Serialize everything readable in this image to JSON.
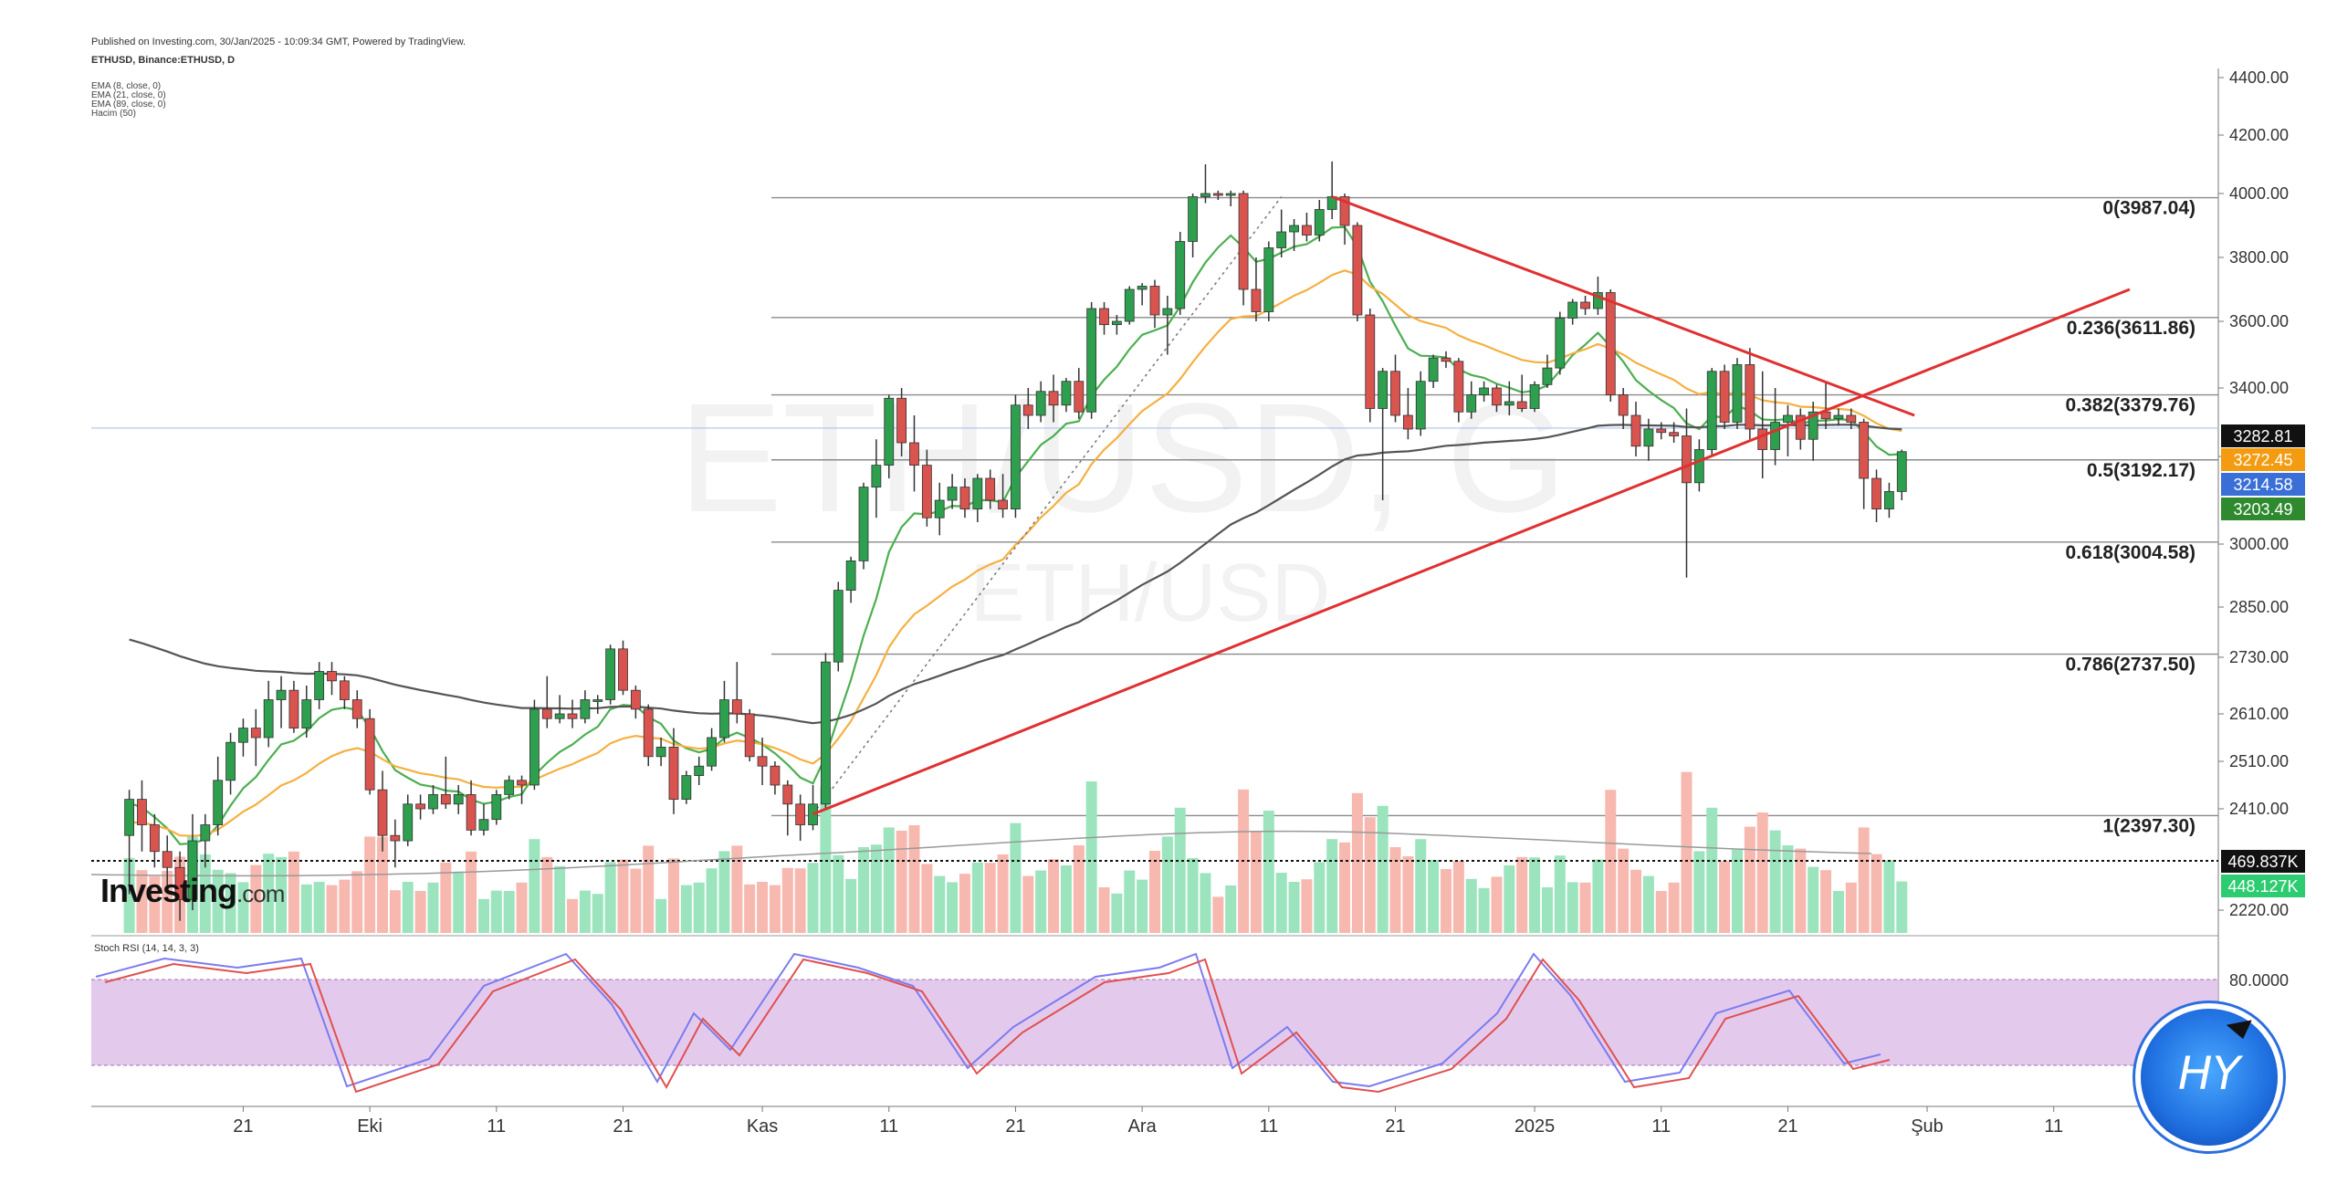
{
  "header": {
    "published": "Published on Investing.com, 30/Jan/2025 - 10:09:34 GMT, Powered by TradingView.",
    "symbol": "ETHUSD, Binance:ETHUSD, D",
    "indicators": [
      "EMA (8, close, 0)",
      "EMA (21, close, 0)",
      "EMA (89, close, 0)",
      "Hacim (50)"
    ]
  },
  "watermark": {
    "big": "ETH/USD, G",
    "small": "ETH/USD"
  },
  "brand": {
    "name": "Investing",
    "suffix": ".com"
  },
  "avatar": {
    "label": "HY"
  },
  "chart_data": {
    "type": "candlestick",
    "symbol": "ETHUSD",
    "timeframe": "D",
    "date_range": [
      "2024-09-12",
      "2025-01-30"
    ],
    "ylim": [
      2130,
      4430
    ],
    "y_ticks": [
      "4400.00",
      "4200.00",
      "4000.00",
      "3800.00",
      "3600.00",
      "3400.00",
      "3200.00",
      "3000.00",
      "2850.00",
      "2730.00",
      "2610.00",
      "2510.00",
      "2410.00",
      "2220.00"
    ],
    "x_ticks": [
      {
        "date": "2024-09-21",
        "label": "21"
      },
      {
        "date": "2024-10-01",
        "label": "Eki"
      },
      {
        "date": "2024-10-11",
        "label": "11"
      },
      {
        "date": "2024-10-21",
        "label": "21"
      },
      {
        "date": "2024-11-01",
        "label": "Kas"
      },
      {
        "date": "2024-11-11",
        "label": "11"
      },
      {
        "date": "2024-11-21",
        "label": "21"
      },
      {
        "date": "2024-12-01",
        "label": "Ara"
      },
      {
        "date": "2024-12-11",
        "label": "11"
      },
      {
        "date": "2024-12-21",
        "label": "21"
      },
      {
        "date": "2025-01-01",
        "label": "2025"
      },
      {
        "date": "2025-01-11",
        "label": "11"
      },
      {
        "date": "2025-01-21",
        "label": "21"
      },
      {
        "date": "2025-02-01",
        "label": "Şub"
      },
      {
        "date": "2025-02-11",
        "label": "11"
      }
    ],
    "fib_levels": [
      {
        "label": "0(3987.04)",
        "value": 3987.04
      },
      {
        "label": "0.236(3611.86)",
        "value": 3611.86
      },
      {
        "label": "0.382(3379.76)",
        "value": 3379.76
      },
      {
        "label": "0.5(3192.17)",
        "value": 3192.17
      },
      {
        "label": "0.618(3004.58)",
        "value": 3004.58
      },
      {
        "label": "0.786(2737.50)",
        "value": 2737.5
      },
      {
        "label": "1(2397.30)",
        "value": 2397.3
      }
    ],
    "price_tags": [
      {
        "label": "3282.81",
        "value": 3282.81,
        "color": "#111111"
      },
      {
        "label": "3272.45",
        "value": 3272.45,
        "color": "#f39c12"
      },
      {
        "label": "3214.58",
        "value": 3214.58,
        "color": "#3b6fd8"
      },
      {
        "label": "3203.49",
        "value": 3203.49,
        "color": "#2f8a2f"
      }
    ],
    "volume_tags": [
      {
        "label": "469.837K",
        "color": "#111111"
      },
      {
        "label": "448.127K",
        "color": "#2ecc71"
      }
    ],
    "rsi_ticks": [
      "80.0000"
    ],
    "rsi_title": "Stoch RSI (14, 14, 3, 3)",
    "series": [
      {
        "name": "EMA (8, close, 0)",
        "color": "#4caf50"
      },
      {
        "name": "EMA (21, close, 0)",
        "color": "#f5b041"
      },
      {
        "name": "EMA (89, close, 0)",
        "color": "#555555"
      }
    ],
    "trendlines": [
      {
        "from": [
          "2024-12-16",
          3990
        ],
        "to": [
          "2025-01-31",
          3320
        ],
        "color": "#e03030"
      },
      {
        "from": [
          "2024-11-05",
          2400
        ],
        "to": [
          "2025-02-17",
          3700
        ],
        "color": "#e03030"
      }
    ],
    "candles": [
      [
        "2024-09-12",
        2360,
        2450,
        2250,
        2430
      ],
      [
        "2024-09-13",
        2430,
        2470,
        2330,
        2380
      ],
      [
        "2024-09-14",
        2380,
        2400,
        2300,
        2330
      ],
      [
        "2024-09-15",
        2330,
        2360,
        2260,
        2300
      ],
      [
        "2024-09-16",
        2300,
        2330,
        2200,
        2240
      ],
      [
        "2024-09-17",
        2240,
        2400,
        2220,
        2350
      ],
      [
        "2024-09-18",
        2350,
        2400,
        2300,
        2380
      ],
      [
        "2024-09-19",
        2380,
        2520,
        2360,
        2470
      ],
      [
        "2024-09-20",
        2470,
        2570,
        2440,
        2550
      ],
      [
        "2024-09-21",
        2550,
        2600,
        2520,
        2580
      ],
      [
        "2024-09-22",
        2580,
        2620,
        2500,
        2560
      ],
      [
        "2024-09-23",
        2560,
        2680,
        2540,
        2640
      ],
      [
        "2024-09-24",
        2640,
        2690,
        2580,
        2660
      ],
      [
        "2024-09-25",
        2660,
        2680,
        2570,
        2580
      ],
      [
        "2024-09-26",
        2580,
        2670,
        2560,
        2640
      ],
      [
        "2024-09-27",
        2640,
        2720,
        2620,
        2700
      ],
      [
        "2024-09-28",
        2700,
        2720,
        2650,
        2680
      ],
      [
        "2024-09-29",
        2680,
        2690,
        2620,
        2640
      ],
      [
        "2024-09-30",
        2640,
        2660,
        2580,
        2600
      ],
      [
        "2024-10-01",
        2600,
        2620,
        2440,
        2450
      ],
      [
        "2024-10-02",
        2450,
        2490,
        2330,
        2360
      ],
      [
        "2024-10-03",
        2360,
        2390,
        2300,
        2350
      ],
      [
        "2024-10-04",
        2350,
        2440,
        2340,
        2420
      ],
      [
        "2024-10-05",
        2420,
        2440,
        2390,
        2410
      ],
      [
        "2024-10-06",
        2410,
        2460,
        2400,
        2440
      ],
      [
        "2024-10-07",
        2440,
        2520,
        2410,
        2420
      ],
      [
        "2024-10-08",
        2420,
        2460,
        2400,
        2440
      ],
      [
        "2024-10-09",
        2440,
        2470,
        2360,
        2370
      ],
      [
        "2024-10-10",
        2370,
        2420,
        2360,
        2390
      ],
      [
        "2024-10-11",
        2390,
        2450,
        2380,
        2440
      ],
      [
        "2024-10-12",
        2440,
        2480,
        2430,
        2470
      ],
      [
        "2024-10-13",
        2470,
        2480,
        2420,
        2460
      ],
      [
        "2024-10-14",
        2460,
        2640,
        2450,
        2620
      ],
      [
        "2024-10-15",
        2620,
        2690,
        2580,
        2600
      ],
      [
        "2024-10-16",
        2600,
        2650,
        2590,
        2610
      ],
      [
        "2024-10-17",
        2610,
        2640,
        2580,
        2600
      ],
      [
        "2024-10-18",
        2600,
        2660,
        2590,
        2640
      ],
      [
        "2024-10-19",
        2640,
        2650,
        2610,
        2640
      ],
      [
        "2024-10-20",
        2640,
        2760,
        2630,
        2750
      ],
      [
        "2024-10-21",
        2750,
        2770,
        2650,
        2660
      ],
      [
        "2024-10-22",
        2660,
        2670,
        2600,
        2620
      ],
      [
        "2024-10-23",
        2620,
        2630,
        2500,
        2520
      ],
      [
        "2024-10-24",
        2520,
        2560,
        2500,
        2540
      ],
      [
        "2024-10-25",
        2540,
        2580,
        2400,
        2430
      ],
      [
        "2024-10-26",
        2430,
        2490,
        2420,
        2480
      ],
      [
        "2024-10-27",
        2480,
        2520,
        2460,
        2500
      ],
      [
        "2024-10-28",
        2500,
        2580,
        2490,
        2560
      ],
      [
        "2024-10-29",
        2560,
        2680,
        2550,
        2640
      ],
      [
        "2024-10-30",
        2640,
        2720,
        2590,
        2610
      ],
      [
        "2024-10-31",
        2610,
        2620,
        2510,
        2520
      ],
      [
        "2024-11-01",
        2520,
        2560,
        2460,
        2500
      ],
      [
        "2024-11-02",
        2500,
        2510,
        2440,
        2460
      ],
      [
        "2024-11-03",
        2460,
        2470,
        2360,
        2420
      ],
      [
        "2024-11-04",
        2420,
        2440,
        2350,
        2380
      ],
      [
        "2024-11-05",
        2380,
        2460,
        2370,
        2420
      ],
      [
        "2024-11-06",
        2420,
        2740,
        2410,
        2720
      ],
      [
        "2024-11-07",
        2720,
        2910,
        2700,
        2890
      ],
      [
        "2024-11-08",
        2890,
        2970,
        2860,
        2960
      ],
      [
        "2024-11-09",
        2960,
        3140,
        2940,
        3130
      ],
      [
        "2024-11-10",
        3130,
        3250,
        3060,
        3180
      ],
      [
        "2024-11-11",
        3180,
        3380,
        3150,
        3370
      ],
      [
        "2024-11-12",
        3370,
        3400,
        3200,
        3240
      ],
      [
        "2024-11-13",
        3240,
        3320,
        3120,
        3180
      ],
      [
        "2024-11-14",
        3180,
        3220,
        3040,
        3060
      ],
      [
        "2024-11-15",
        3060,
        3140,
        3020,
        3100
      ],
      [
        "2024-11-16",
        3100,
        3160,
        3080,
        3130
      ],
      [
        "2024-11-17",
        3130,
        3150,
        3060,
        3080
      ],
      [
        "2024-11-18",
        3080,
        3160,
        3050,
        3150
      ],
      [
        "2024-11-19",
        3150,
        3170,
        3080,
        3100
      ],
      [
        "2024-11-20",
        3100,
        3160,
        3060,
        3080
      ],
      [
        "2024-11-21",
        3080,
        3380,
        3060,
        3350
      ],
      [
        "2024-11-22",
        3350,
        3400,
        3280,
        3320
      ],
      [
        "2024-11-23",
        3320,
        3420,
        3300,
        3390
      ],
      [
        "2024-11-24",
        3390,
        3440,
        3300,
        3350
      ],
      [
        "2024-11-25",
        3350,
        3430,
        3330,
        3420
      ],
      [
        "2024-11-26",
        3420,
        3460,
        3310,
        3330
      ],
      [
        "2024-11-27",
        3330,
        3660,
        3310,
        3640
      ],
      [
        "2024-11-28",
        3640,
        3660,
        3560,
        3590
      ],
      [
        "2024-11-29",
        3590,
        3620,
        3560,
        3600
      ],
      [
        "2024-11-30",
        3600,
        3710,
        3590,
        3700
      ],
      [
        "2024-12-01",
        3700,
        3720,
        3650,
        3710
      ],
      [
        "2024-12-02",
        3710,
        3730,
        3580,
        3620
      ],
      [
        "2024-12-03",
        3620,
        3680,
        3500,
        3640
      ],
      [
        "2024-12-04",
        3640,
        3880,
        3620,
        3850
      ],
      [
        "2024-12-05",
        3850,
        4000,
        3800,
        3990
      ],
      [
        "2024-12-06",
        3990,
        4100,
        3970,
        4000
      ],
      [
        "2024-12-07",
        4000,
        4010,
        3980,
        3995
      ],
      [
        "2024-12-08",
        3995,
        4010,
        3960,
        4000
      ],
      [
        "2024-12-09",
        4000,
        4010,
        3650,
        3700
      ],
      [
        "2024-12-10",
        3700,
        3800,
        3600,
        3630
      ],
      [
        "2024-12-11",
        3630,
        3850,
        3600,
        3830
      ],
      [
        "2024-12-12",
        3830,
        3950,
        3800,
        3880
      ],
      [
        "2024-12-13",
        3880,
        3920,
        3820,
        3900
      ],
      [
        "2024-12-14",
        3900,
        3940,
        3850,
        3870
      ],
      [
        "2024-12-15",
        3870,
        3980,
        3850,
        3950
      ],
      [
        "2024-12-16",
        3950,
        4110,
        3920,
        3990
      ],
      [
        "2024-12-17",
        3990,
        4000,
        3840,
        3900
      ],
      [
        "2024-12-18",
        3900,
        3910,
        3600,
        3620
      ],
      [
        "2024-12-19",
        3620,
        3640,
        3300,
        3340
      ],
      [
        "2024-12-20",
        3340,
        3460,
        3100,
        3450
      ],
      [
        "2024-12-21",
        3450,
        3500,
        3300,
        3320
      ],
      [
        "2024-12-22",
        3320,
        3400,
        3250,
        3280
      ],
      [
        "2024-12-23",
        3280,
        3450,
        3260,
        3420
      ],
      [
        "2024-12-24",
        3420,
        3500,
        3400,
        3490
      ],
      [
        "2024-12-25",
        3490,
        3510,
        3460,
        3480
      ],
      [
        "2024-12-26",
        3480,
        3490,
        3300,
        3330
      ],
      [
        "2024-12-27",
        3330,
        3420,
        3310,
        3380
      ],
      [
        "2024-12-28",
        3380,
        3420,
        3360,
        3400
      ],
      [
        "2024-12-29",
        3400,
        3410,
        3330,
        3350
      ],
      [
        "2024-12-30",
        3350,
        3420,
        3320,
        3360
      ],
      [
        "2024-12-31",
        3360,
        3440,
        3330,
        3340
      ],
      [
        "2025-01-01",
        3340,
        3420,
        3330,
        3410
      ],
      [
        "2025-01-02",
        3410,
        3500,
        3400,
        3460
      ],
      [
        "2025-01-03",
        3460,
        3630,
        3440,
        3610
      ],
      [
        "2025-01-04",
        3610,
        3670,
        3590,
        3660
      ],
      [
        "2025-01-05",
        3660,
        3680,
        3620,
        3640
      ],
      [
        "2025-01-06",
        3640,
        3740,
        3620,
        3690
      ],
      [
        "2025-01-07",
        3690,
        3700,
        3360,
        3380
      ],
      [
        "2025-01-08",
        3380,
        3400,
        3280,
        3320
      ],
      [
        "2025-01-09",
        3320,
        3360,
        3200,
        3230
      ],
      [
        "2025-01-10",
        3230,
        3310,
        3190,
        3280
      ],
      [
        "2025-01-11",
        3280,
        3300,
        3250,
        3270
      ],
      [
        "2025-01-12",
        3270,
        3300,
        3240,
        3260
      ],
      [
        "2025-01-13",
        3260,
        3340,
        2920,
        3140
      ],
      [
        "2025-01-14",
        3140,
        3250,
        3120,
        3220
      ],
      [
        "2025-01-15",
        3220,
        3460,
        3200,
        3450
      ],
      [
        "2025-01-16",
        3450,
        3470,
        3280,
        3300
      ],
      [
        "2025-01-17",
        3300,
        3490,
        3280,
        3470
      ],
      [
        "2025-01-18",
        3470,
        3520,
        3250,
        3280
      ],
      [
        "2025-01-19",
        3280,
        3450,
        3150,
        3220
      ],
      [
        "2025-01-20",
        3220,
        3400,
        3180,
        3300
      ],
      [
        "2025-01-21",
        3300,
        3350,
        3200,
        3320
      ],
      [
        "2025-01-22",
        3320,
        3340,
        3220,
        3250
      ],
      [
        "2025-01-23",
        3250,
        3360,
        3190,
        3330
      ],
      [
        "2025-01-24",
        3330,
        3420,
        3280,
        3310
      ],
      [
        "2025-01-25",
        3310,
        3340,
        3290,
        3320
      ],
      [
        "2025-01-26",
        3320,
        3340,
        3280,
        3300
      ],
      [
        "2025-01-27",
        3300,
        3310,
        3080,
        3150
      ],
      [
        "2025-01-28",
        3150,
        3170,
        3050,
        3080
      ],
      [
        "2025-01-29",
        3080,
        3140,
        3060,
        3120
      ],
      [
        "2025-01-30",
        3120,
        3220,
        3100,
        3214
      ]
    ]
  }
}
